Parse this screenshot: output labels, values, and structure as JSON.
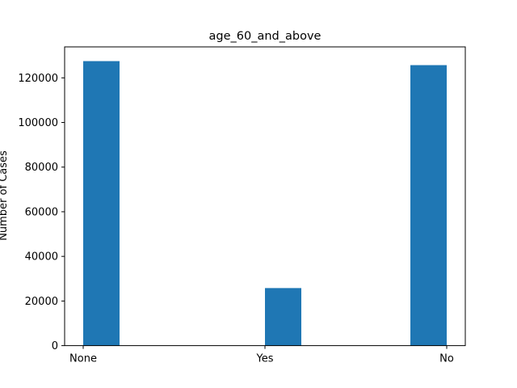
{
  "chart_data": {
    "type": "bar",
    "title": "age_60_and_above",
    "xlabel": "",
    "ylabel": "Number of Cases",
    "categories": [
      "None",
      "Yes",
      "No"
    ],
    "values": [
      127500,
      25800,
      125700
    ],
    "ylim": [
      0,
      133875
    ],
    "yticks": [
      0,
      20000,
      40000,
      60000,
      80000,
      100000,
      120000
    ],
    "ytick_labels": [
      "0",
      "20000",
      "40000",
      "60000",
      "80000",
      "100000",
      "120000"
    ],
    "bar_color": "#1f77b4",
    "grid": false,
    "legend": "none"
  }
}
